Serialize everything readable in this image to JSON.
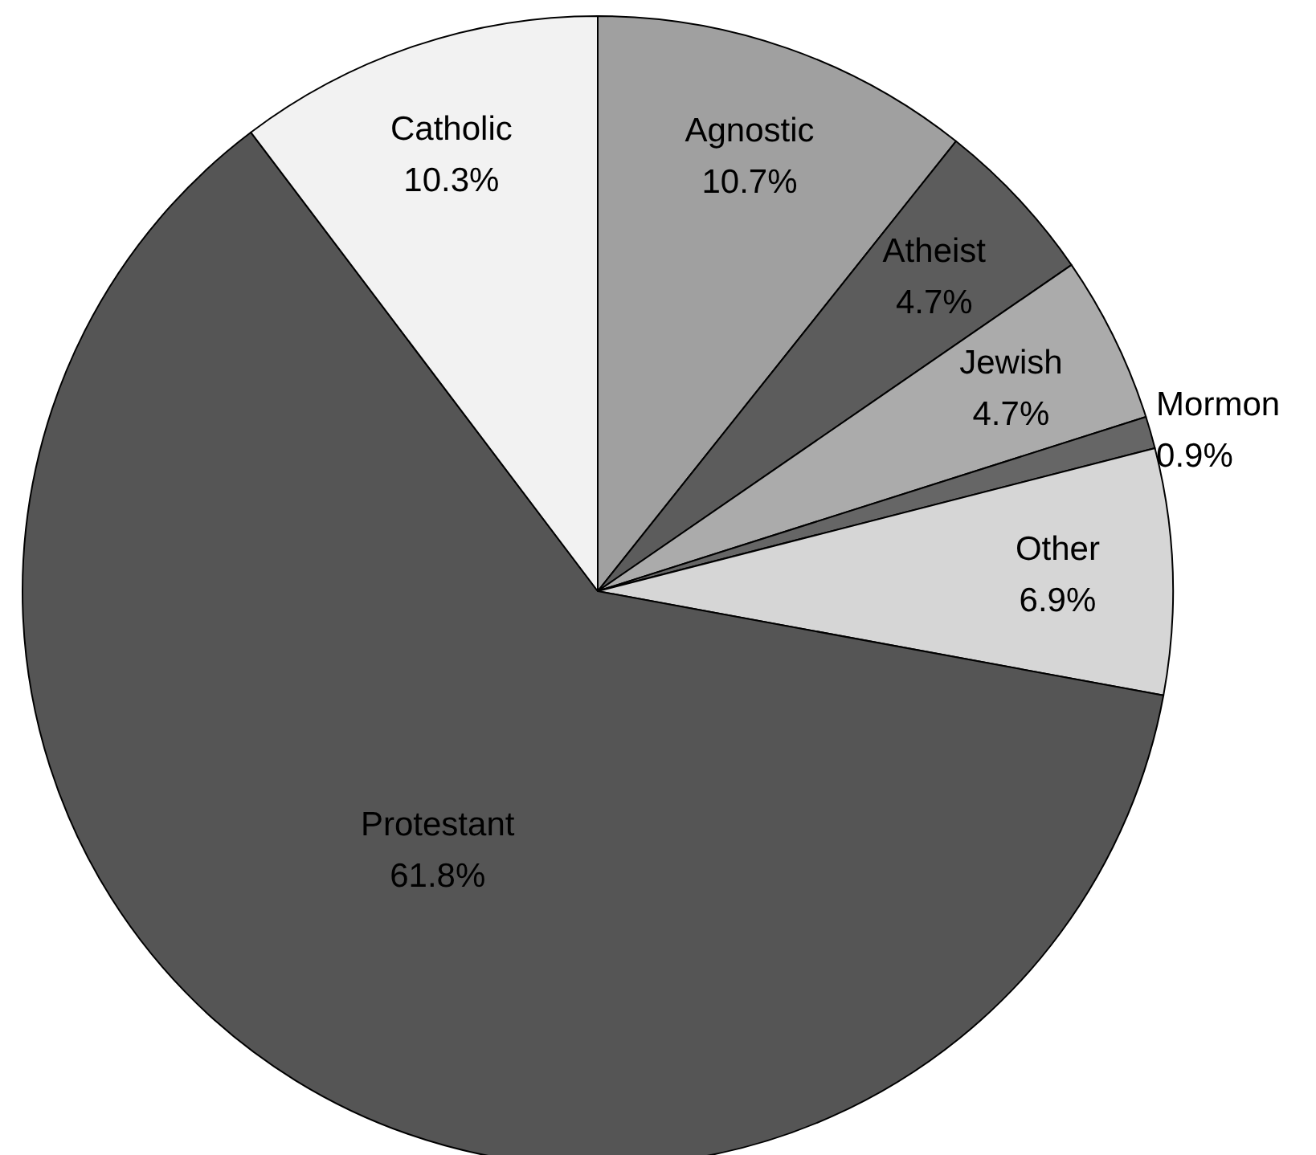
{
  "chart_data": {
    "type": "pie",
    "categories": [
      "Agnostic",
      "Atheist",
      "Jewish",
      "Mormon",
      "Other",
      "Protestant",
      "Catholic"
    ],
    "values": [
      10.7,
      4.7,
      4.7,
      0.9,
      6.9,
      61.8,
      10.3
    ],
    "value_labels": [
      "10.7%",
      "4.7%",
      "4.7%",
      "0.9%",
      "6.9%",
      "61.8%",
      "10.3%"
    ],
    "colors": [
      "#a0a0a0",
      "#5c5c5c",
      "#ababab",
      "#666666",
      "#d6d6d6",
      "#555555",
      "#f2f2f2"
    ],
    "legend": false
  }
}
